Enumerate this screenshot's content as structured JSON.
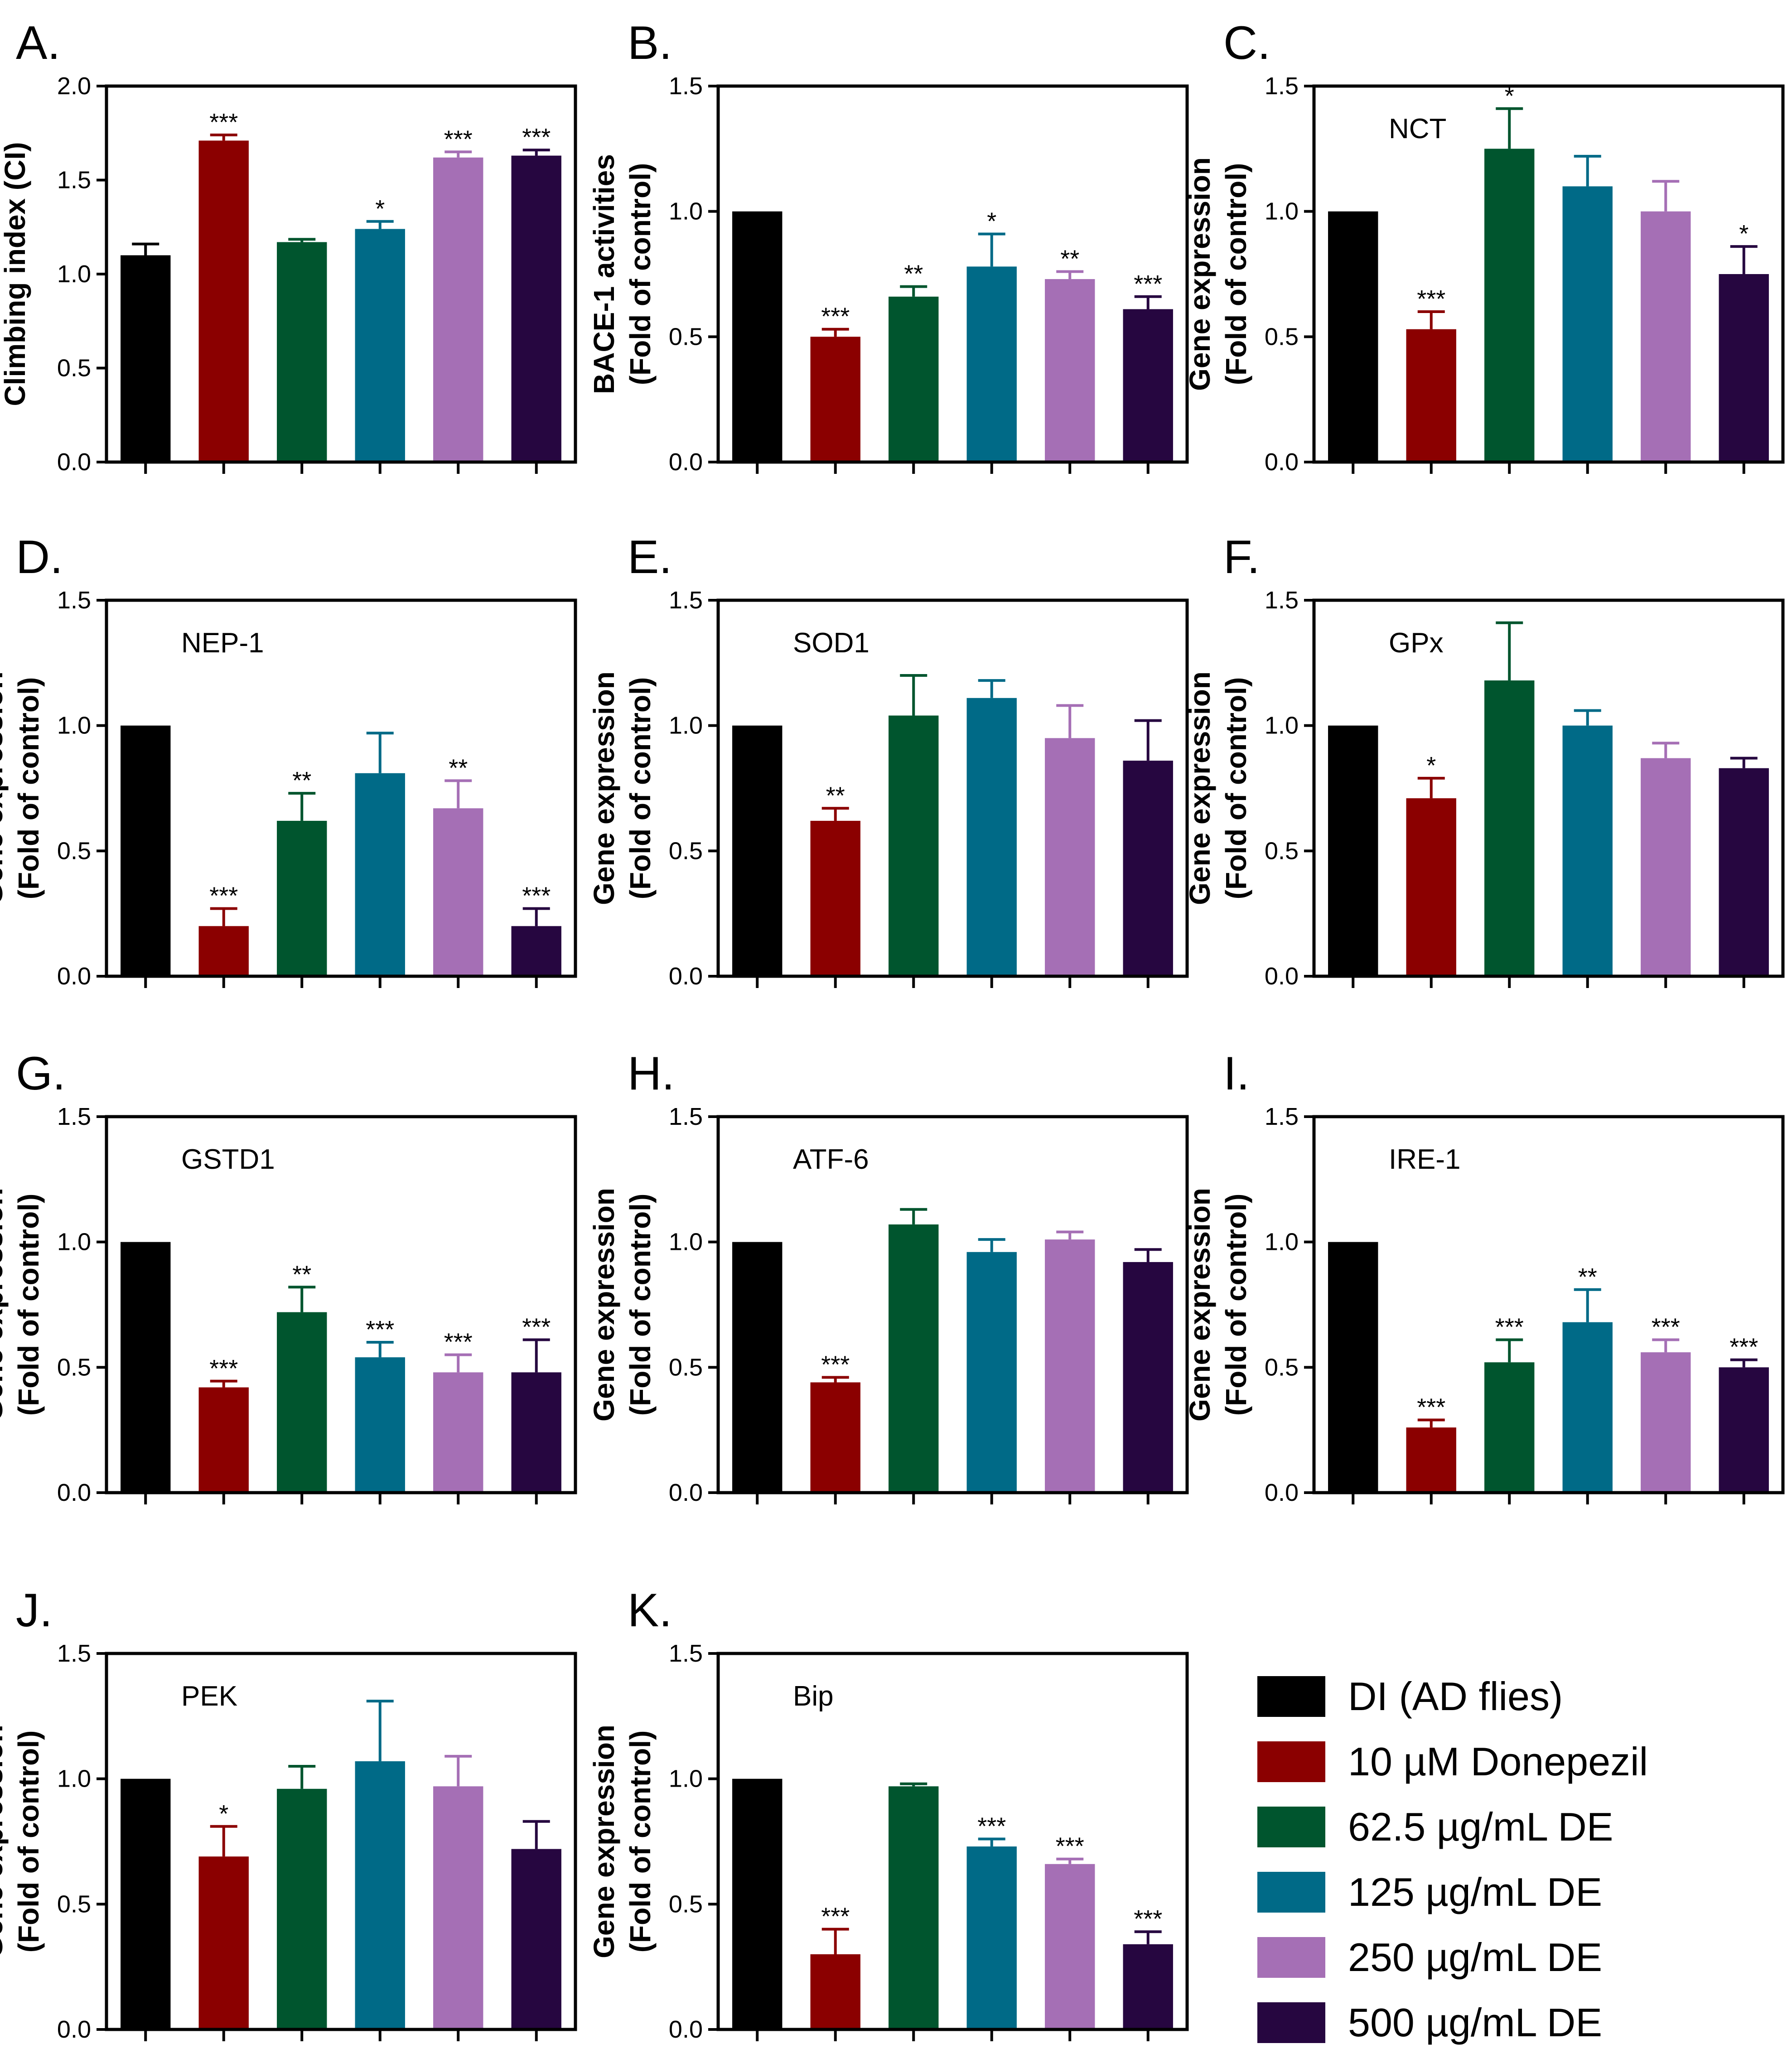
{
  "figure_title": "",
  "legend": {
    "items": [
      {
        "label": "DI (AD flies)",
        "color": "#000000"
      },
      {
        "label": "10 µM Donepezil",
        "color": "#8b0000"
      },
      {
        "label": "62.5 µg/mL DE",
        "color": "#00552e"
      },
      {
        "label": "125 µg/mL DE",
        "color": "#006a87"
      },
      {
        "label": "250 µg/mL DE",
        "color": "#a56fb5"
      },
      {
        "label": "500 µg/mL DE",
        "color": "#260640"
      }
    ]
  },
  "chart_data": [
    {
      "panel": "A.",
      "type": "bar",
      "gene": "",
      "ylabel": [
        "Climbing  index (CI)"
      ],
      "ylim": [
        0,
        2.0
      ],
      "yticks": [
        "0.0",
        "0.5",
        "1.0",
        "1.5",
        "2.0"
      ],
      "values": [
        1.1,
        1.71,
        1.17,
        1.24,
        1.62,
        1.63
      ],
      "errors": [
        0.06,
        0.03,
        0.015,
        0.04,
        0.03,
        0.03
      ],
      "stars": [
        "",
        "***",
        "",
        "*",
        "***",
        "***"
      ]
    },
    {
      "panel": "B.",
      "type": "bar",
      "gene": "",
      "ylabel": [
        "BACE-1 activities",
        "(Fold of control)"
      ],
      "ylim": [
        0,
        1.5
      ],
      "yticks": [
        "0.0",
        "0.5",
        "1.0",
        "1.5"
      ],
      "values": [
        1.0,
        0.5,
        0.66,
        0.78,
        0.73,
        0.61
      ],
      "errors": [
        0,
        0.03,
        0.04,
        0.13,
        0.03,
        0.05
      ],
      "stars": [
        "",
        "***",
        "**",
        "*",
        "**",
        "***"
      ]
    },
    {
      "panel": "C.",
      "type": "bar",
      "gene": "NCT",
      "ylabel": [
        "Gene expression",
        "(Fold of control)"
      ],
      "ylim": [
        0,
        1.5
      ],
      "yticks": [
        "0.0",
        "0.5",
        "1.0",
        "1.5"
      ],
      "values": [
        1.0,
        0.53,
        1.25,
        1.1,
        1.0,
        0.75
      ],
      "errors": [
        0,
        0.07,
        0.16,
        0.12,
        0.12,
        0.11
      ],
      "stars": [
        "",
        "***",
        "*",
        "",
        "",
        "*"
      ]
    },
    {
      "panel": "D.",
      "type": "bar",
      "gene": "NEP-1",
      "ylabel": [
        "Gene expression",
        "(Fold of control)"
      ],
      "ylim": [
        0,
        1.5
      ],
      "yticks": [
        "0.0",
        "0.5",
        "1.0",
        "1.5"
      ],
      "values": [
        1.0,
        0.2,
        0.62,
        0.81,
        0.67,
        0.2
      ],
      "errors": [
        0,
        0.07,
        0.11,
        0.16,
        0.11,
        0.07
      ],
      "stars": [
        "",
        "***",
        "**",
        "",
        "**",
        "***"
      ]
    },
    {
      "panel": "E.",
      "type": "bar",
      "gene": "SOD1",
      "ylabel": [
        "Gene expression",
        "(Fold of control)"
      ],
      "ylim": [
        0,
        1.5
      ],
      "yticks": [
        "0.0",
        "0.5",
        "1.0",
        "1.5"
      ],
      "values": [
        1.0,
        0.62,
        1.04,
        1.11,
        0.95,
        0.86
      ],
      "errors": [
        0,
        0.05,
        0.16,
        0.07,
        0.13,
        0.16
      ],
      "stars": [
        "",
        "**",
        "",
        "",
        "",
        ""
      ]
    },
    {
      "panel": "F.",
      "type": "bar",
      "gene": "GPx",
      "ylabel": [
        "Gene expression",
        "(Fold of control)"
      ],
      "ylim": [
        0,
        1.5
      ],
      "yticks": [
        "0.0",
        "0.5",
        "1.0",
        "1.5"
      ],
      "values": [
        1.0,
        0.71,
        1.18,
        1.0,
        0.87,
        0.83
      ],
      "errors": [
        0,
        0.08,
        0.23,
        0.06,
        0.06,
        0.04
      ],
      "stars": [
        "",
        "*",
        "",
        "",
        "",
        ""
      ]
    },
    {
      "panel": "G.",
      "type": "bar",
      "gene": "GSTD1",
      "ylabel": [
        "Gene expression",
        "(Fold of control)"
      ],
      "ylim": [
        0,
        1.5
      ],
      "yticks": [
        "0.0",
        "0.5",
        "1.0",
        "1.5"
      ],
      "values": [
        1.0,
        0.42,
        0.72,
        0.54,
        0.48,
        0.48
      ],
      "errors": [
        0,
        0.025,
        0.1,
        0.06,
        0.07,
        0.13
      ],
      "stars": [
        "",
        "***",
        "**",
        "***",
        "***",
        "***"
      ]
    },
    {
      "panel": "H.",
      "type": "bar",
      "gene": "ATF-6",
      "ylabel": [
        "Gene expression",
        "(Fold of control)"
      ],
      "ylim": [
        0,
        1.5
      ],
      "yticks": [
        "0.0",
        "0.5",
        "1.0",
        "1.5"
      ],
      "values": [
        1.0,
        0.44,
        1.07,
        0.96,
        1.01,
        0.92
      ],
      "errors": [
        0,
        0.02,
        0.06,
        0.05,
        0.03,
        0.05
      ],
      "stars": [
        "",
        "***",
        "",
        "",
        "",
        ""
      ]
    },
    {
      "panel": "I.",
      "type": "bar",
      "gene": "IRE-1",
      "ylabel": [
        "Gene expression",
        "(Fold of control)"
      ],
      "ylim": [
        0,
        1.5
      ],
      "yticks": [
        "0.0",
        "0.5",
        "1.0",
        "1.5"
      ],
      "values": [
        1.0,
        0.26,
        0.52,
        0.68,
        0.56,
        0.5
      ],
      "errors": [
        0,
        0.03,
        0.09,
        0.13,
        0.05,
        0.03
      ],
      "stars": [
        "",
        "***",
        "***",
        "**",
        "***",
        "***"
      ]
    },
    {
      "panel": "J.",
      "type": "bar",
      "gene": "PEK",
      "ylabel": [
        "Gene expression",
        "(Fold of control)"
      ],
      "ylim": [
        0,
        1.5
      ],
      "yticks": [
        "0.0",
        "0.5",
        "1.0",
        "1.5"
      ],
      "values": [
        1.0,
        0.69,
        0.96,
        1.07,
        0.97,
        0.72
      ],
      "errors": [
        0,
        0.12,
        0.09,
        0.24,
        0.12,
        0.11
      ],
      "stars": [
        "",
        "*",
        "",
        "",
        "",
        ""
      ]
    },
    {
      "panel": "K.",
      "type": "bar",
      "gene": "Bip",
      "ylabel": [
        "Gene expression",
        "(Fold of control)"
      ],
      "ylim": [
        0,
        1.5
      ],
      "yticks": [
        "0.0",
        "0.5",
        "1.0",
        "1.5"
      ],
      "values": [
        1.0,
        0.3,
        0.97,
        0.73,
        0.66,
        0.34
      ],
      "errors": [
        0,
        0.1,
        0.01,
        0.03,
        0.02,
        0.05
      ],
      "stars": [
        "",
        "***",
        "",
        "***",
        "***",
        "***"
      ]
    }
  ]
}
